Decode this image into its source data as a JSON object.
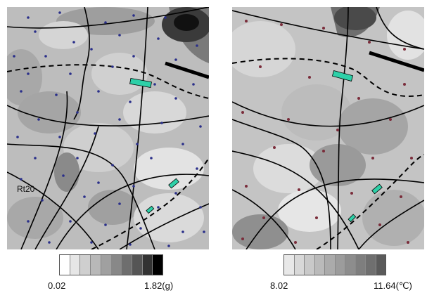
{
  "left_map": {
    "label": "Rt20",
    "legend": {
      "min": "0.02",
      "max": "1.82(g)",
      "colors": [
        "#ffffff",
        "#e6e6e6",
        "#cfcfcf",
        "#b8b8b8",
        "#a0a0a0",
        "#888888",
        "#6e6e6e",
        "#555555",
        "#333333",
        "#000000"
      ]
    },
    "point_color": "#2a2f8a",
    "marker_color": "#2ed0a8"
  },
  "right_map": {
    "legend": {
      "min": "8.02",
      "max": "11.64(℃)",
      "colors": [
        "#e8e8e8",
        "#d8d8d8",
        "#c9c9c9",
        "#bababa",
        "#ababab",
        "#9c9c9c",
        "#8d8d8d",
        "#7e7e7e",
        "#6f6f6f",
        "#5a5a5a"
      ]
    },
    "point_color": "#7a2c3a",
    "marker_color": "#2ed0a8"
  }
}
